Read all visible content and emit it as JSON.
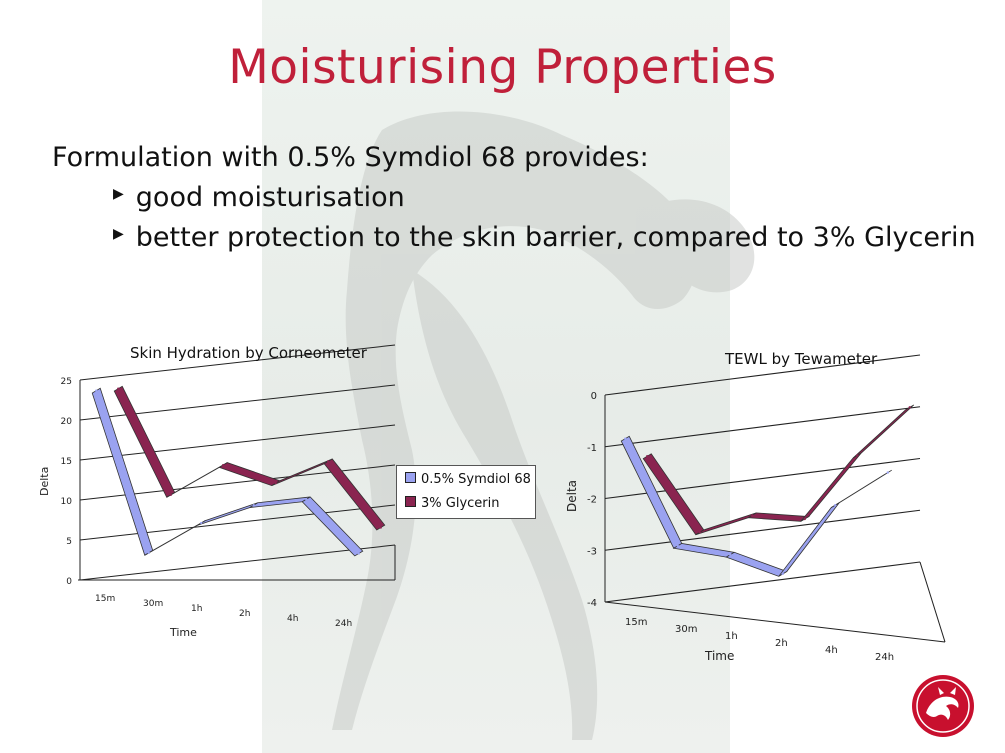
{
  "slide": {
    "title": "Moisturising Properties",
    "intro": "Formulation with 0.5% Symdiol 68 provides:",
    "bullets": [
      "good moisturisation",
      "better protection to the skin barrier, compared to 3% Glycerin"
    ]
  },
  "colors": {
    "title": "#c0203a",
    "symdiol": "#9aa2f0",
    "glycerin": "#8a2450",
    "grid": "#222222"
  },
  "chart_data": [
    {
      "type": "line",
      "title": "Skin Hydration by Corneometer",
      "xlabel": "Time",
      "ylabel": "Delta",
      "categories": [
        "15m",
        "30m",
        "1h",
        "2h",
        "4h",
        "24h"
      ],
      "yticks": [
        "0",
        "5",
        "10",
        "15",
        "20",
        "25"
      ],
      "ylim": [
        0,
        25
      ],
      "grid": true,
      "legend": {
        "position": "right",
        "entries": [
          "0.5% Symdiol 68",
          "3% Glycerin"
        ]
      },
      "series": [
        {
          "name": "0.5% Symdiol 68",
          "values": [
            24,
            3,
            6,
            7.5,
            7.5,
            0
          ]
        },
        {
          "name": "3% Glycerin",
          "values": [
            24,
            10,
            13,
            10,
            12,
            3
          ]
        }
      ]
    },
    {
      "type": "line",
      "title": "TEWL by Tewameter",
      "xlabel": "Time",
      "ylabel": "Delta",
      "categories": [
        "15m",
        "30m",
        "1h",
        "2h",
        "4h",
        "24h"
      ],
      "yticks": [
        "-4",
        "-3",
        "-2",
        "-1",
        "0"
      ],
      "ylim": [
        -4,
        0
      ],
      "grid": true,
      "series": [
        {
          "name": "0.5% Symdiol 68",
          "values": [
            -0.8,
            -3.0,
            -3.3,
            -3.8,
            -2.6,
            -2.1
          ]
        },
        {
          "name": "3% Glycerin",
          "values": [
            -1.1,
            -2.7,
            -2.5,
            -2.7,
            -1.6,
            -0.8
          ]
        }
      ]
    }
  ]
}
